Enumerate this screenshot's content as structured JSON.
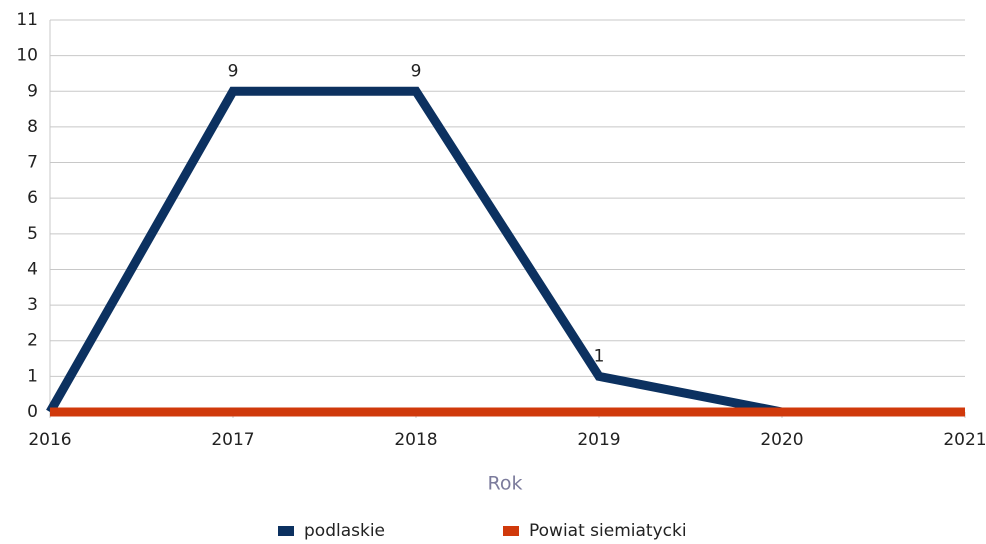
{
  "chart_data": {
    "type": "line",
    "x_label": "Rok",
    "x": [
      2016,
      2017,
      2018,
      2019,
      2020,
      2021
    ],
    "xlim": [
      2016,
      2021
    ],
    "xticks": [
      2016,
      2017,
      2018,
      2019,
      2020,
      2021
    ],
    "ylim": [
      0,
      11
    ],
    "yticks": [
      0,
      1,
      2,
      3,
      4,
      5,
      6,
      7,
      8,
      9,
      10,
      11
    ],
    "grid": true,
    "legend": "bottom",
    "series": [
      {
        "name": "podlaskie",
        "color": "#0c3160",
        "values": [
          0,
          9,
          9,
          1,
          0,
          0
        ],
        "value_labels": [
          null,
          "9",
          "9",
          "1",
          null,
          null
        ]
      },
      {
        "name": "Powiat siemiatycki",
        "color": "#d0390b",
        "values": [
          0,
          0,
          0,
          0,
          0,
          0
        ]
      }
    ]
  }
}
